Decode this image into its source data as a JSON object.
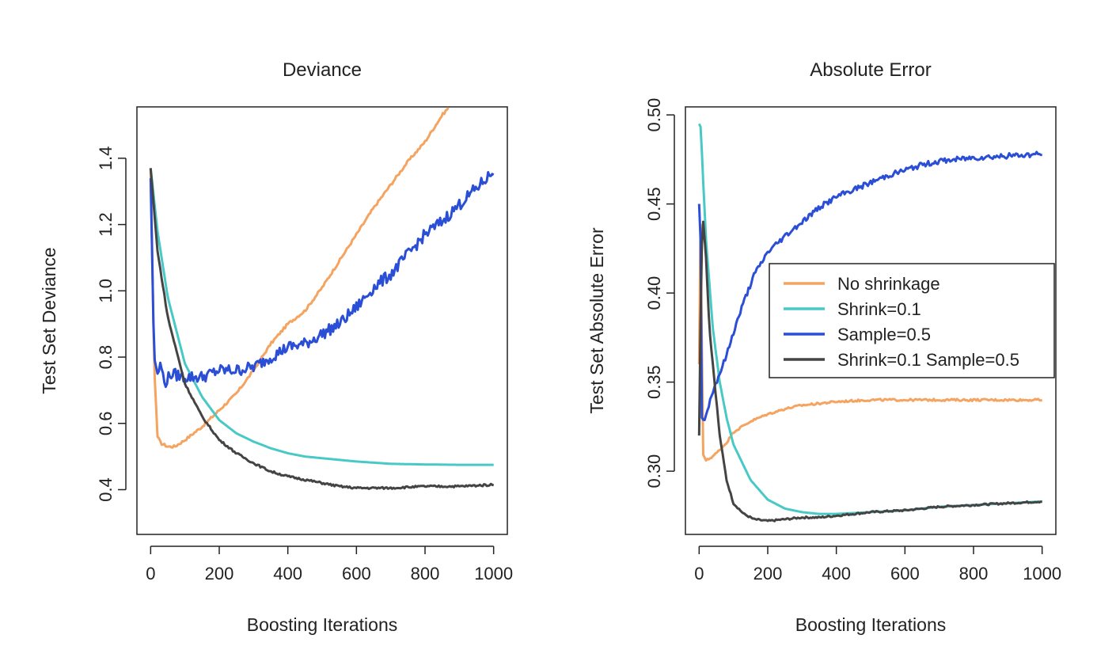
{
  "colors": {
    "no_shrinkage": "#f4a460",
    "shrink": "#48c9c6",
    "sample": "#2a4ed6",
    "shrink_sample": "#444444"
  },
  "chart_data": [
    {
      "type": "line",
      "title": "Deviance",
      "xlabel": "Boosting Iterations",
      "ylabel": "Test Set Deviance",
      "xlim": [
        -40,
        1040
      ],
      "ylim": [
        0.265,
        1.555
      ],
      "xticks": [
        "0",
        "200",
        "400",
        "600",
        "800",
        "1000"
      ],
      "yticks": [
        "0.4",
        "0.6",
        "0.8",
        "1.0",
        "1.2",
        "1.4"
      ],
      "series": [
        {
          "key": "no_shrinkage",
          "x": [
            0,
            10,
            20,
            30,
            50,
            70,
            100,
            150,
            200,
            250,
            300,
            350,
            400,
            450,
            500,
            550,
            600,
            650,
            700,
            750,
            800,
            850,
            870
          ],
          "y": [
            1.37,
            0.78,
            0.56,
            0.54,
            0.53,
            0.53,
            0.55,
            0.59,
            0.64,
            0.69,
            0.76,
            0.84,
            0.9,
            0.94,
            1.01,
            1.09,
            1.17,
            1.25,
            1.32,
            1.39,
            1.45,
            1.53,
            1.555
          ],
          "noise": 0.004
        },
        {
          "key": "shrink",
          "x": [
            0,
            20,
            50,
            100,
            150,
            200,
            250,
            300,
            350,
            400,
            450,
            500,
            600,
            700,
            800,
            900,
            1000
          ],
          "y": [
            1.37,
            1.18,
            0.98,
            0.78,
            0.68,
            0.61,
            0.57,
            0.545,
            0.525,
            0.51,
            0.5,
            0.495,
            0.485,
            0.478,
            0.476,
            0.475,
            0.475
          ],
          "noise": 0.0
        },
        {
          "key": "sample",
          "x": [
            0,
            10,
            20,
            30,
            40,
            60,
            100,
            150,
            200,
            250,
            300,
            350,
            400,
            450,
            500,
            550,
            600,
            650,
            700,
            750,
            800,
            850,
            900,
            950,
            1000
          ],
          "y": [
            1.34,
            0.8,
            0.75,
            0.78,
            0.72,
            0.75,
            0.74,
            0.74,
            0.76,
            0.76,
            0.77,
            0.8,
            0.83,
            0.84,
            0.87,
            0.9,
            0.95,
            1.01,
            1.05,
            1.11,
            1.17,
            1.21,
            1.26,
            1.31,
            1.36
          ],
          "noise": 0.018
        },
        {
          "key": "shrink_sample",
          "x": [
            0,
            20,
            50,
            100,
            150,
            200,
            250,
            300,
            350,
            400,
            450,
            500,
            550,
            600,
            700,
            800,
            900,
            1000
          ],
          "y": [
            1.37,
            1.12,
            0.92,
            0.72,
            0.62,
            0.55,
            0.51,
            0.48,
            0.455,
            0.44,
            0.43,
            0.42,
            0.41,
            0.405,
            0.405,
            0.41,
            0.41,
            0.415
          ],
          "noise": 0.003
        }
      ]
    },
    {
      "type": "line",
      "title": "Absolute Error",
      "xlabel": "Boosting Iterations",
      "ylabel": "Test Set Absolute Error",
      "xlim": [
        -40,
        1040
      ],
      "ylim": [
        0.2645,
        0.5045
      ],
      "xticks": [
        "0",
        "200",
        "400",
        "600",
        "800",
        "1000"
      ],
      "yticks": [
        "0.30",
        "0.35",
        "0.40",
        "0.45",
        "0.50"
      ],
      "series": [
        {
          "key": "no_shrinkage",
          "x": [
            0,
            5,
            10,
            20,
            30,
            50,
            80,
            100,
            150,
            200,
            250,
            300,
            400,
            500,
            600,
            700,
            800,
            900,
            1000
          ],
          "y": [
            0.36,
            0.458,
            0.31,
            0.306,
            0.307,
            0.31,
            0.316,
            0.322,
            0.328,
            0.332,
            0.335,
            0.337,
            0.339,
            0.34,
            0.34,
            0.34,
            0.34,
            0.34,
            0.34
          ],
          "noise": 0.0006
        },
        {
          "key": "shrink",
          "x": [
            0,
            5,
            10,
            20,
            40,
            60,
            80,
            100,
            150,
            200,
            250,
            300,
            350,
            400,
            500,
            600,
            700,
            800,
            900,
            1000
          ],
          "y": [
            0.495,
            0.493,
            0.47,
            0.43,
            0.38,
            0.35,
            0.33,
            0.315,
            0.295,
            0.284,
            0.279,
            0.277,
            0.276,
            0.276,
            0.277,
            0.278,
            0.28,
            0.281,
            0.282,
            0.283
          ],
          "noise": 0.0
        },
        {
          "key": "sample",
          "x": [
            0,
            3,
            8,
            15,
            25,
            40,
            60,
            80,
            100,
            130,
            160,
            200,
            250,
            300,
            350,
            400,
            450,
            500,
            550,
            600,
            650,
            700,
            800,
            900,
            1000
          ],
          "y": [
            0.45,
            0.455,
            0.33,
            0.328,
            0.335,
            0.345,
            0.355,
            0.365,
            0.378,
            0.395,
            0.41,
            0.423,
            0.432,
            0.44,
            0.448,
            0.454,
            0.458,
            0.462,
            0.466,
            0.469,
            0.472,
            0.474,
            0.476,
            0.477,
            0.478
          ],
          "noise": 0.0015
        },
        {
          "key": "shrink_sample",
          "x": [
            0,
            5,
            10,
            20,
            30,
            40,
            50,
            60,
            80,
            100,
            130,
            160,
            200,
            250,
            300,
            350,
            400,
            500,
            600,
            700,
            800,
            900,
            1000
          ],
          "y": [
            0.32,
            0.4,
            0.445,
            0.42,
            0.38,
            0.36,
            0.34,
            0.32,
            0.295,
            0.282,
            0.276,
            0.273,
            0.272,
            0.273,
            0.274,
            0.274,
            0.275,
            0.277,
            0.278,
            0.28,
            0.281,
            0.282,
            0.283
          ],
          "noise": 0.0005
        }
      ],
      "legend": {
        "position": "right",
        "entries": [
          {
            "key": "no_shrinkage",
            "label": "No shrinkage"
          },
          {
            "key": "shrink",
            "label": "Shrink=0.1"
          },
          {
            "key": "sample",
            "label": "Sample=0.5"
          },
          {
            "key": "shrink_sample",
            "label": "Shrink=0.1 Sample=0.5"
          }
        ]
      }
    }
  ]
}
